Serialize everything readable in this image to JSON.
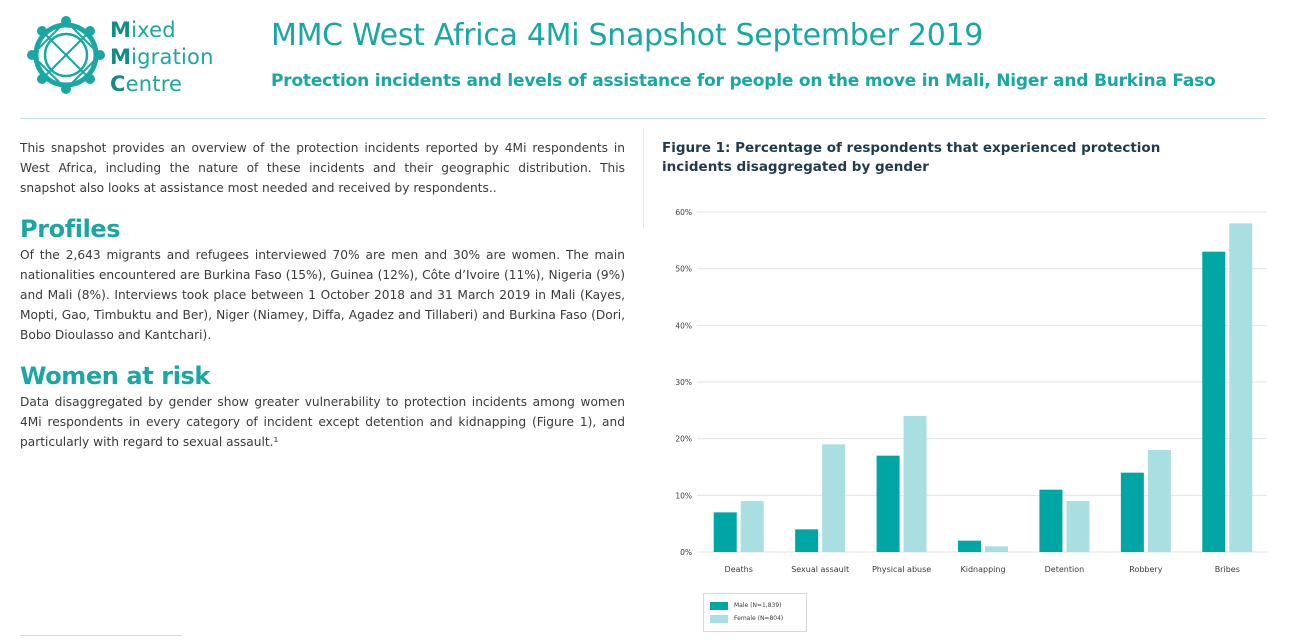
{
  "logo": {
    "line1_initial": "M",
    "line1_rest": "ixed",
    "line2_initial": "M",
    "line2_rest": "igration",
    "line3_initial": "C",
    "line3_rest": "entre"
  },
  "header": {
    "title": "MMC West Africa 4Mi Snapshot September 2019",
    "subtitle": "Protection incidents and levels of assistance for people on the move in Mali, Niger and Burkina Faso"
  },
  "intro": "This snapshot provides an overview of the protection incidents reported by 4Mi respondents in West Africa, including the nature of these incidents and their geographic distribution. This snapshot also looks at assistance most needed and received by respondents..",
  "sections": {
    "profiles": {
      "heading": "Profiles",
      "text": "Of the 2,643 migrants and refugees interviewed 70% are men and 30% are women. The main nationalities encountered are Burkina Faso (15%), Guinea (12%), Côte d’Ivoire (11%), Nigeria (9%) and Mali (8%). Interviews took place between 1 October 2018 and 31 March 2019 in Mali (Kayes, Mopti, Gao, Timbuktu and Ber), Niger (Niamey, Diffa, Agadez and Tillaberi) and Burkina Faso (Dori, Bobo Dioulasso and Kantchari)."
    },
    "women": {
      "heading": "Women at risk",
      "text": "Data disaggregated by gender show greater vulnerability to protection incidents among women 4Mi respondents in every category of incident except detention and kidnapping (Figure 1), and particularly with regard to sexual assault.¹"
    }
  },
  "figure": {
    "title": "Figure 1: Percentage of respondents that experienced protection incidents disaggregated by gender"
  },
  "colors": {
    "accent": "#1aa7a3",
    "male": "#00a6a4",
    "female": "#aadfe2"
  },
  "chart_data": {
    "type": "bar",
    "title": "Figure 1: Percentage of respondents that experienced protection incidents disaggregated by gender",
    "categories": [
      "Deaths",
      "Sexual assault",
      "Physical abuse",
      "Kidnapping",
      "Detention",
      "Robbery",
      "Bribes"
    ],
    "series": [
      {
        "name": "Male (N=1,839)",
        "values": [
          7,
          4,
          17,
          2,
          11,
          14,
          53
        ]
      },
      {
        "name": "Female (N=804)",
        "values": [
          9,
          19,
          24,
          1,
          9,
          18,
          58
        ]
      }
    ],
    "y_ticks": [
      "0%",
      "10%",
      "20%",
      "30%",
      "40%",
      "50%",
      "60%"
    ],
    "ylim": [
      0,
      60
    ],
    "grid": true,
    "legend_position": "bottom-left",
    "xlabel": "",
    "ylabel": ""
  }
}
